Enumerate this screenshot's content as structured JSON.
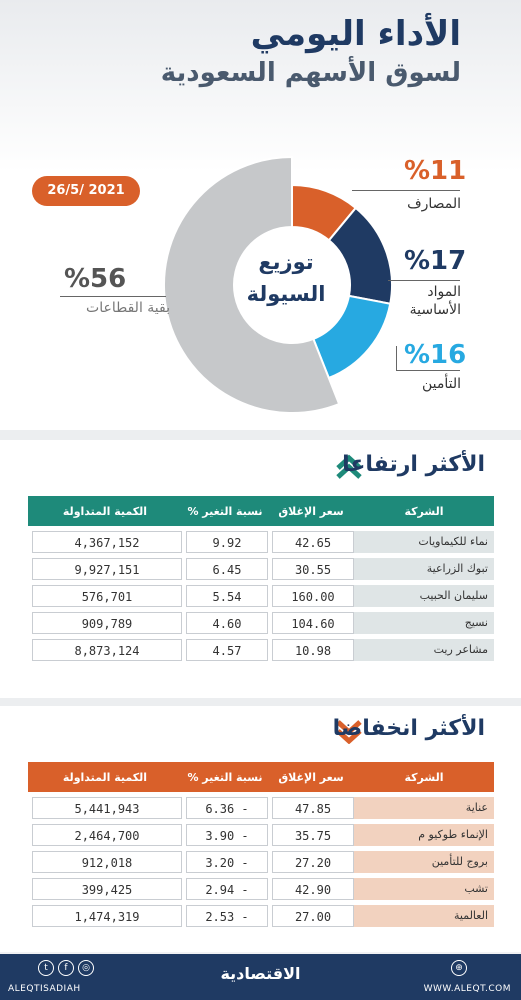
{
  "header": {
    "title_line1": "الأداء اليومي",
    "title_line2": "لسوق الأسهم السعودية",
    "date": "26/5/ 2021"
  },
  "chart_data": {
    "type": "pie",
    "title": "توزيع السيولة",
    "slices": [
      {
        "label": "المصارف",
        "value": 11,
        "display": "%11",
        "color": "#d9602a"
      },
      {
        "label_line1": "المواد",
        "label_line2": "الأساسية",
        "label": "المواد الأساسية",
        "value": 17,
        "display": "%17",
        "color": "#1f3a63"
      },
      {
        "label": "التأمين",
        "value": 16,
        "display": "%16",
        "color": "#27a9e1"
      },
      {
        "label": "بقية القطاعات",
        "value": 56,
        "display": "%56",
        "color": "#c6c8ca"
      }
    ]
  },
  "gainers": {
    "title": "الأكثر ارتفاعا",
    "header_color": "#1e8a7a",
    "name_bg": "#dfe5e6",
    "columns": [
      "الشركة",
      "سعر الإغلاق",
      "نسبة التغير %",
      "الكمية المتداولة"
    ],
    "rows": [
      {
        "name": "نماء للكيماويات",
        "close": "42.65",
        "change": "9.92",
        "volume": "4,367,152"
      },
      {
        "name": "تبوك الزراعية",
        "close": "30.55",
        "change": "6.45",
        "volume": "9,927,151"
      },
      {
        "name": "سليمان الحبيب",
        "close": "160.00",
        "change": "5.54",
        "volume": "576,701"
      },
      {
        "name": "نسيج",
        "close": "104.60",
        "change": "4.60",
        "volume": "909,789"
      },
      {
        "name": "مشاعر ريت",
        "close": "10.98",
        "change": "4.57",
        "volume": "8,873,124"
      }
    ]
  },
  "losers": {
    "title": "الأكثر انخفاضا",
    "header_color": "#d9602a",
    "name_bg": "#f2d2bf",
    "columns": [
      "الشركة",
      "سعر الإغلاق",
      "نسبة التغير %",
      "الكمية المتداولة"
    ],
    "rows": [
      {
        "name": "عناية",
        "close": "47.85",
        "change": "6.36 -",
        "volume": "5,441,943"
      },
      {
        "name": "الإنماء طوكيو م",
        "close": "35.75",
        "change": "3.90 -",
        "volume": "2,464,700"
      },
      {
        "name": "بروج للتأمين",
        "close": "27.20",
        "change": "3.20 -",
        "volume": "912,018"
      },
      {
        "name": "تشب",
        "close": "42.90",
        "change": "2.94 -",
        "volume": "399,425"
      },
      {
        "name": "العالمية",
        "close": "27.00",
        "change": "2.53 -",
        "volume": "1,474,319"
      }
    ]
  },
  "footer": {
    "logo": "الاقتصادية",
    "handle": "ALEQTISADIAH",
    "website": "WWW.ALEQT.COM"
  }
}
